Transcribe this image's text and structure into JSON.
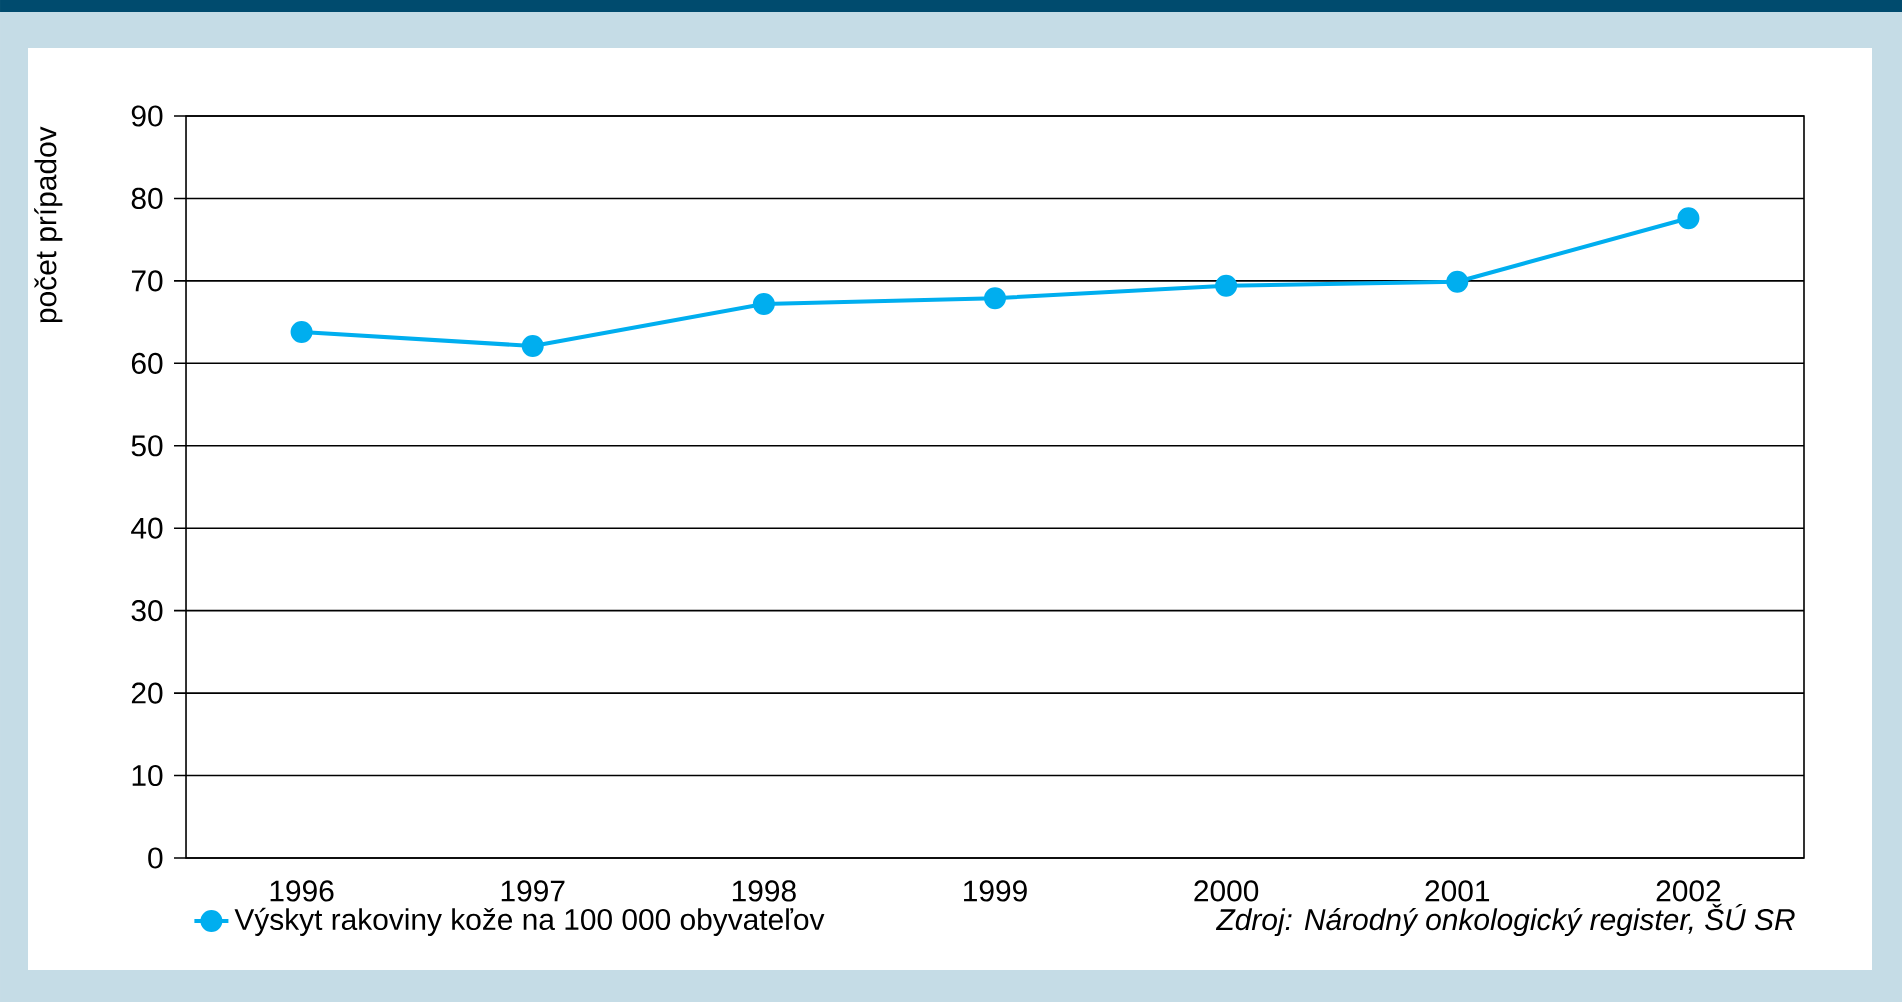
{
  "chart_data": {
    "type": "line",
    "ylabel": "počet prípadov",
    "categories": [
      "1996",
      "1997",
      "1998",
      "1999",
      "2000",
      "2001",
      "2002"
    ],
    "series": [
      {
        "name": "Výskyt rakoviny kože na 100 000 obyvateľov",
        "color": "#00aeef",
        "values": [
          63.8,
          62.1,
          67.2,
          67.9,
          69.4,
          69.9,
          77.6
        ]
      }
    ],
    "ylim": [
      0,
      90
    ],
    "yticks": [
      0,
      10,
      20,
      30,
      40,
      50,
      60,
      70,
      80,
      90
    ],
    "grid": "y",
    "legend": "bottom left",
    "marker": "circle",
    "line_style": "solid",
    "annotations": [
      "Zdroj: Národný onkologický register, ŠÚ SR"
    ]
  }
}
